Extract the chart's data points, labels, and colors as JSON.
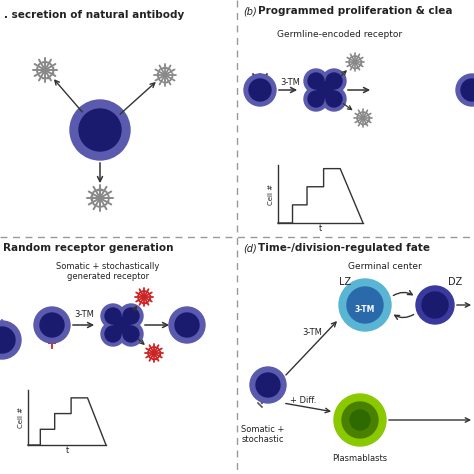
{
  "bg_color": "#ffffff",
  "cell_dark": "#1a1a6e",
  "cell_mid": "#3a3a9e",
  "cell_outer": "#5a5aae",
  "cell_blue_light": "#5ab4d4",
  "cell_blue_inner": "#2a6aaa",
  "green_dark": "#2d6a00",
  "green_mid": "#4a8000",
  "green_light": "#8ac800",
  "red_color": "#cc2222",
  "gray_color": "#888888",
  "arrow_color": "#333333",
  "text_color": "#222222",
  "dashed_color": "#999999",
  "panel_a_title": ". secretion of natural antibody",
  "panel_b_label": "(b)",
  "panel_b_title": "Programmed proliferation & clea",
  "panel_c_title": "Random receptor generation",
  "panel_d_label": "(d)",
  "panel_d_title": "Time-/division-regulated fate",
  "panel_b_subtitle": "Germline-encoded receptor",
  "label_3tm": "3-TM",
  "panel_c_somatic": "Somatic + stochastically\ngenerated receptor",
  "panel_d_germinal": "Germinal center",
  "panel_d_lz": "LZ",
  "panel_d_dz": "DZ",
  "panel_d_3tm_label": "3-TM",
  "panel_d_diff": "+ Diff.",
  "panel_d_somatic": "Somatic +\nstochastic",
  "panel_d_plasmablasts": "Plasmablasts",
  "cell_ylabel": "Cell #",
  "time_label": "t"
}
